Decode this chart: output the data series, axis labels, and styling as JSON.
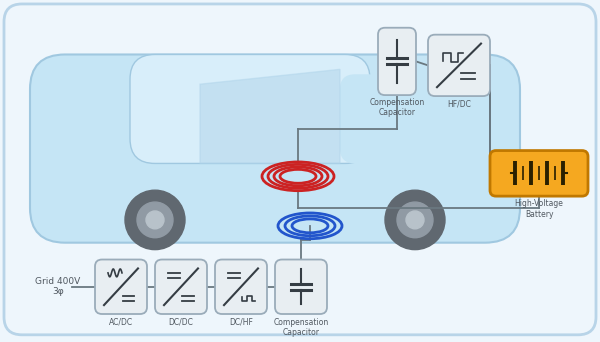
{
  "bg_color": "#eef6fc",
  "border_color": "#b8d4e8",
  "box_fill": "#e8eef2",
  "box_border": "#9aacba",
  "sym_color": "#353d44",
  "wire_color": "#6a7880",
  "red_coil": "#cc2222",
  "blue_coil": "#2255cc",
  "battery_fill": "#f5a820",
  "battery_border": "#c07800",
  "battery_sym": "#2a2000",
  "text_color": "#505860",
  "grid_label": "Grid 400V\n3φ",
  "bottom_labels": [
    "AC/DC",
    "DC/DC",
    "DC/HF",
    "Compensation\nCapacitor"
  ],
  "top_labels": [
    "Compensation\nCapacitor",
    "HF/DC"
  ],
  "battery_label": "High-Voltage\nBattery",
  "car_body": "#c5e5f5",
  "car_body2": "#d8eefa",
  "car_border": "#a0c8e0",
  "wheel_dark": "#606870",
  "wheel_mid": "#909aa4",
  "wheel_light": "#b8c2ca"
}
